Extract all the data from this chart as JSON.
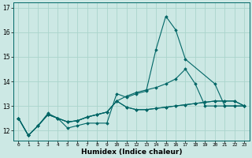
{
  "xlabel": "Humidex (Indice chaleur)",
  "bg_color": "#cce8e4",
  "grid_color": "#aad4cc",
  "line_color": "#006666",
  "xlim": [
    -0.5,
    23.5
  ],
  "ylim": [
    11.6,
    17.2
  ],
  "yticks": [
    12,
    13,
    14,
    15,
    16,
    17
  ],
  "xticks": [
    0,
    1,
    2,
    3,
    4,
    5,
    6,
    7,
    8,
    9,
    10,
    11,
    12,
    13,
    14,
    15,
    16,
    17,
    18,
    19,
    20,
    21,
    22,
    23
  ],
  "series": [
    {
      "x": [
        0,
        1,
        2,
        3,
        4,
        5,
        6,
        7,
        8,
        9,
        10,
        11,
        12,
        13,
        14,
        15,
        16,
        17,
        20,
        21,
        22,
        23
      ],
      "y": [
        12.5,
        11.8,
        12.2,
        12.7,
        12.5,
        12.1,
        12.2,
        12.3,
        12.3,
        12.3,
        13.5,
        13.35,
        13.5,
        13.6,
        15.3,
        16.65,
        16.1,
        14.9,
        13.9,
        13.0,
        13.0,
        13.0
      ]
    },
    {
      "x": [
        0,
        1,
        2,
        3,
        4,
        5,
        6,
        7,
        8,
        9,
        10,
        11,
        12,
        13,
        14,
        15,
        16,
        17,
        18,
        19,
        20,
        21,
        22,
        23
      ],
      "y": [
        12.5,
        11.8,
        12.2,
        12.65,
        12.5,
        12.35,
        12.4,
        12.55,
        12.65,
        12.75,
        13.2,
        12.95,
        12.85,
        12.85,
        12.9,
        12.95,
        13.0,
        13.05,
        13.1,
        13.15,
        13.2,
        13.2,
        13.2,
        13.0
      ]
    },
    {
      "x": [
        0,
        1,
        2,
        3,
        4,
        5,
        6,
        7,
        8,
        9,
        10,
        11,
        12,
        13,
        14,
        15,
        16,
        17,
        18,
        19,
        20,
        21,
        22,
        23
      ],
      "y": [
        12.5,
        11.8,
        12.2,
        12.65,
        12.5,
        12.35,
        12.4,
        12.55,
        12.65,
        12.75,
        13.2,
        13.4,
        13.55,
        13.65,
        13.75,
        13.9,
        14.1,
        14.5,
        13.9,
        13.0,
        13.0,
        13.0,
        13.0,
        13.0
      ]
    },
    {
      "x": [
        0,
        1,
        2,
        3,
        4,
        5,
        6,
        7,
        8,
        9,
        10,
        11,
        12,
        13,
        14,
        15,
        16,
        17,
        18,
        19,
        20,
        21,
        22,
        23
      ],
      "y": [
        12.5,
        11.8,
        12.2,
        12.65,
        12.5,
        12.35,
        12.4,
        12.55,
        12.65,
        12.75,
        13.2,
        12.95,
        12.85,
        12.85,
        12.9,
        12.95,
        13.0,
        13.05,
        13.1,
        13.15,
        13.2,
        13.2,
        13.2,
        13.0
      ]
    }
  ]
}
